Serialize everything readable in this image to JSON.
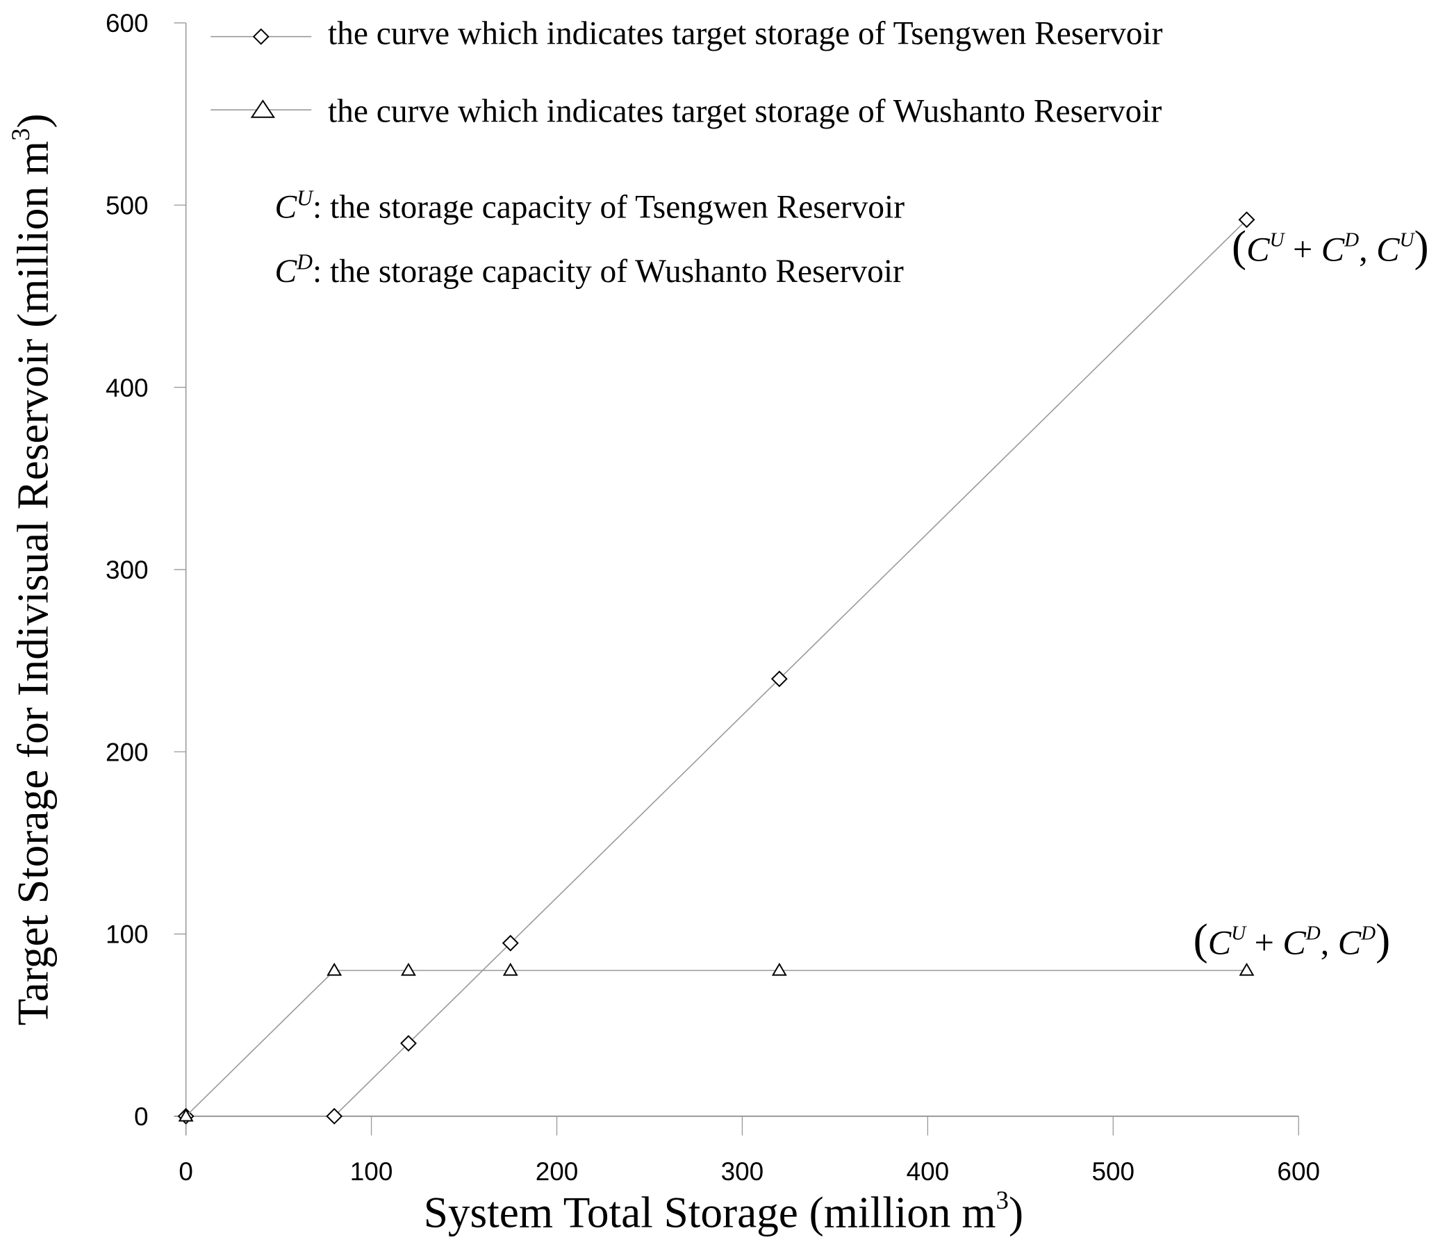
{
  "chart_data": {
    "type": "line",
    "xlabel": "System Total Storage (million m",
    "xlabel_sup": "3",
    "xlabel_end": ")",
    "ylabel": "Target Storage for Indivisual Reservoir (million m",
    "ylabel_sup": "3",
    "ylabel_end": ")",
    "xlim": [
      0,
      600
    ],
    "ylim": [
      0,
      600
    ],
    "xticks": [
      "0",
      "100",
      "200",
      "300",
      "400",
      "500",
      "600"
    ],
    "yticks": [
      "0",
      "100",
      "200",
      "300",
      "400",
      "500",
      "600"
    ],
    "grid": false,
    "legend_position": "top-left",
    "series": [
      {
        "name": "the curve which indicates target storage of Tsengwen Reservoir",
        "marker": "diamond",
        "x": [
          0,
          80,
          120,
          175,
          320,
          572
        ],
        "y": [
          0,
          0,
          40,
          95,
          240,
          492
        ]
      },
      {
        "name": "the curve which indicates target storage of Wushanto Reservoir",
        "marker": "triangle",
        "x": [
          0,
          80,
          120,
          175,
          320,
          572
        ],
        "y": [
          0,
          80,
          80,
          80,
          80,
          80
        ]
      }
    ],
    "line_color": "#999999",
    "marker_color": "#000000",
    "notes": {
      "cu": {
        "sym": "C",
        "sup": "U",
        "text": ": the storage capacity of Tsengwen Reservoir"
      },
      "cd": {
        "sym": "C",
        "sup": "D",
        "text": ": the storage capacity of Wushanto Reservoir"
      }
    },
    "annotations": {
      "upper": {
        "open": "(",
        "c1": "C",
        "s1": "U",
        "plus": " + ",
        "c2": "C",
        "s2": "D",
        "comma": ", ",
        "c3": "C",
        "s3": "U",
        "close": ")"
      },
      "lower": {
        "open": "(",
        "c1": "C",
        "s1": "U",
        "plus": " + ",
        "c2": "C",
        "s2": "D",
        "comma": ", ",
        "c3": "C",
        "s3": "D",
        "close": ")"
      }
    }
  }
}
